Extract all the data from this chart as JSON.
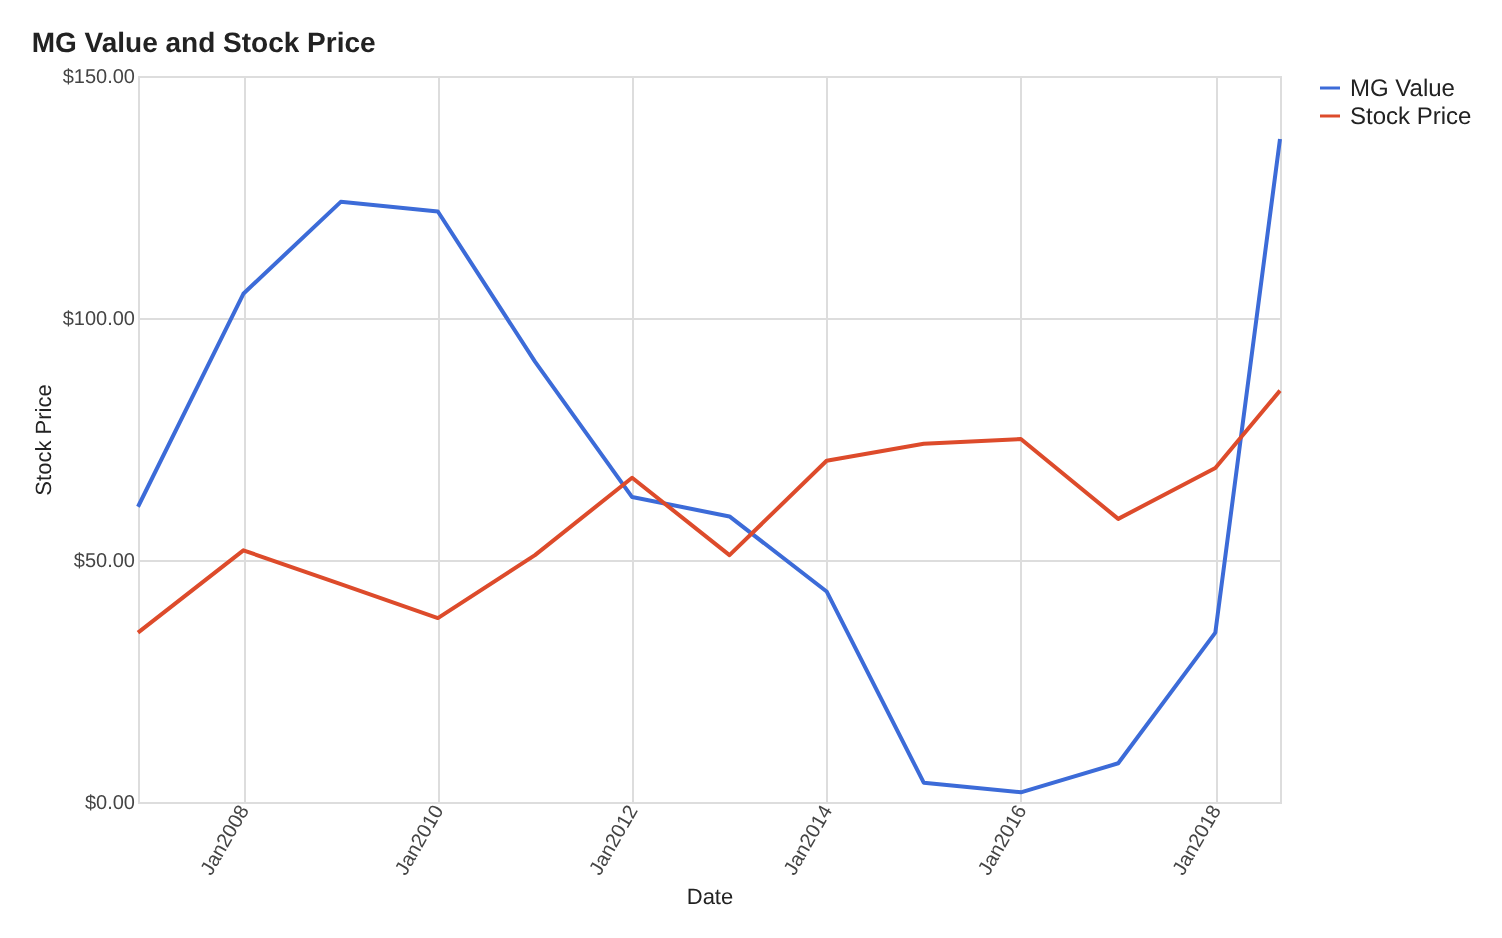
{
  "chart_data": {
    "type": "line",
    "title": "MG Value and Stock Price",
    "xlabel": "Date",
    "ylabel": "Stock Price",
    "x": [
      "2006-12",
      "2008-01",
      "2009-01",
      "2010-01",
      "2011-01",
      "2012-01",
      "2013-01",
      "2014-01",
      "2015-01",
      "2016-01",
      "2017-01",
      "2018-01",
      "2018-09"
    ],
    "series": [
      {
        "name": "MG Value",
        "color": "#3c6bd8",
        "values": [
          61,
          105,
          124,
          122,
          91,
          63,
          59,
          43.5,
          4,
          2,
          8,
          35,
          137
        ]
      },
      {
        "name": "Stock Price",
        "color": "#dd4b2b",
        "values": [
          35,
          52,
          45,
          38,
          51,
          67,
          51,
          70.5,
          74,
          75,
          58.5,
          69,
          85
        ]
      }
    ],
    "xlim": [
      "2006-12",
      "2018-09"
    ],
    "xticks": [
      {
        "value": "2008-01",
        "label": "Jan2008"
      },
      {
        "value": "2010-01",
        "label": "Jan2010"
      },
      {
        "value": "2012-01",
        "label": "Jan2012"
      },
      {
        "value": "2014-01",
        "label": "Jan2014"
      },
      {
        "value": "2016-01",
        "label": "Jan2016"
      },
      {
        "value": "2018-01",
        "label": "Jan2018"
      }
    ],
    "ylim": [
      0,
      150
    ],
    "yticks": [
      {
        "value": 0,
        "label": "$0.00"
      },
      {
        "value": 50,
        "label": "$50.00"
      },
      {
        "value": 100,
        "label": "$100.00"
      },
      {
        "value": 150,
        "label": "$150.00"
      }
    ],
    "grid": true,
    "legend": "top right",
    "marker": "none",
    "line_style": "solid"
  }
}
